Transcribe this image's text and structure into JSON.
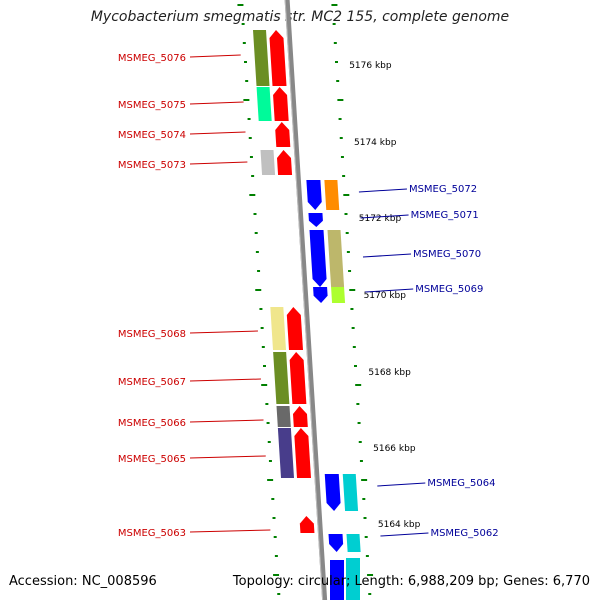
{
  "title": "Mycobacterium smegmatis str. MC2 155, complete genome",
  "footer": {
    "accession_label": "Accession:",
    "accession": "NC_008596",
    "summary": "Topology: circular; Length: 6,988,209 bp; Genes: 6,770"
  },
  "colors": {
    "left_label": "#cc0000",
    "right_label": "#000099",
    "left_arrow": "#ff0000",
    "right_arrow": "#0000ff",
    "tick": "#008000",
    "backbone": "#888888"
  },
  "scale_labels": [
    "5176 kbp",
    "5174 kbp",
    "5172 kbp",
    "5170 kbp",
    "5168 kbp",
    "5166 kbp",
    "5164 kbp"
  ],
  "genes": [
    {
      "name": "MSMEG_5076",
      "strand": "left",
      "swatch": "#6b8e23"
    },
    {
      "name": "MSMEG_5075",
      "strand": "left",
      "swatch": "#00fa9a"
    },
    {
      "name": "MSMEG_5074",
      "strand": "left",
      "swatch": ""
    },
    {
      "name": "MSMEG_5073",
      "strand": "left",
      "swatch": "#c0c0c0"
    },
    {
      "name": "MSMEG_5072",
      "strand": "right",
      "swatch": "#ff8c00"
    },
    {
      "name": "MSMEG_5071",
      "strand": "right",
      "swatch": ""
    },
    {
      "name": "MSMEG_5070",
      "strand": "right",
      "swatch": "#bdb76b"
    },
    {
      "name": "MSMEG_5069",
      "strand": "right",
      "swatch": "#adff2f"
    },
    {
      "name": "MSMEG_5068",
      "strand": "left",
      "swatch": "#f0e68c"
    },
    {
      "name": "MSMEG_5067",
      "strand": "left",
      "swatch": "#6b8e23"
    },
    {
      "name": "MSMEG_5066",
      "strand": "left",
      "swatch": "#696969"
    },
    {
      "name": "MSMEG_5065",
      "strand": "left",
      "swatch": "#483d8b"
    },
    {
      "name": "MSMEG_5064",
      "strand": "right",
      "swatch": "#00ced1"
    },
    {
      "name": "MSMEG_5063",
      "strand": "left",
      "swatch": ""
    },
    {
      "name": "MSMEG_5062",
      "strand": "right",
      "swatch": "#00ced1"
    }
  ]
}
